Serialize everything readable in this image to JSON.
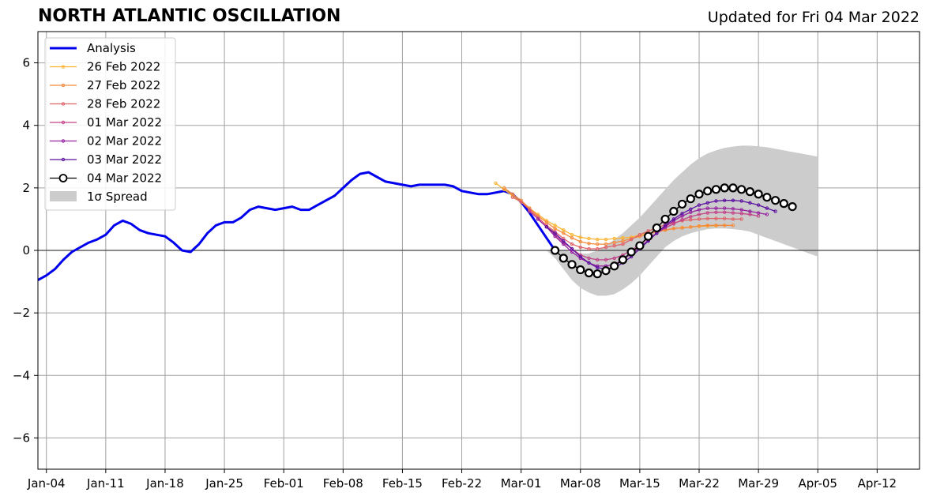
{
  "chart_data": {
    "type": "line",
    "title": "NORTH ATLANTIC OSCILLATION",
    "subtitle": "Updated for Fri 04 Mar 2022",
    "xlabel": "",
    "ylabel": "",
    "x_axis": "date",
    "xlim": [
      "2022-01-03",
      "2022-04-17"
    ],
    "ylim": [
      -7,
      7
    ],
    "x_ticks": [
      {
        "date": "2022-01-04",
        "label": "Jan-04"
      },
      {
        "date": "2022-01-11",
        "label": "Jan-11"
      },
      {
        "date": "2022-01-18",
        "label": "Jan-18"
      },
      {
        "date": "2022-01-25",
        "label": "Jan-25"
      },
      {
        "date": "2022-02-01",
        "label": "Feb-01"
      },
      {
        "date": "2022-02-08",
        "label": "Feb-08"
      },
      {
        "date": "2022-02-15",
        "label": "Feb-15"
      },
      {
        "date": "2022-02-22",
        "label": "Feb-22"
      },
      {
        "date": "2022-03-01",
        "label": "Mar-01"
      },
      {
        "date": "2022-03-08",
        "label": "Mar-08"
      },
      {
        "date": "2022-03-15",
        "label": "Mar-15"
      },
      {
        "date": "2022-03-22",
        "label": "Mar-22"
      },
      {
        "date": "2022-03-29",
        "label": "Mar-29"
      },
      {
        "date": "2022-04-05",
        "label": "Apr-05"
      },
      {
        "date": "2022-04-12",
        "label": "Apr-12"
      }
    ],
    "y_ticks": [
      {
        "value": -6,
        "label": "−6"
      },
      {
        "value": -4,
        "label": "−4"
      },
      {
        "value": -2,
        "label": "−2"
      },
      {
        "value": 0,
        "label": "0"
      },
      {
        "value": 2,
        "label": "2"
      },
      {
        "value": 4,
        "label": "4"
      },
      {
        "value": 6,
        "label": "6"
      }
    ],
    "grid": true,
    "zero_line": 0,
    "legend_position": "top-left",
    "analysis": {
      "name": "Analysis",
      "color": "#0000ee",
      "start_date": "2022-01-03",
      "values": [
        -0.95,
        -0.8,
        -0.6,
        -0.3,
        -0.05,
        0.1,
        0.25,
        0.35,
        0.5,
        0.8,
        0.95,
        0.85,
        0.65,
        0.55,
        0.5,
        0.45,
        0.25,
        0.0,
        -0.05,
        0.2,
        0.55,
        0.8,
        0.9,
        0.9,
        1.05,
        1.3,
        1.4,
        1.35,
        1.3,
        1.35,
        1.4,
        1.3,
        1.3,
        1.45,
        1.6,
        1.75,
        2.0,
        2.25,
        2.45,
        2.5,
        2.35,
        2.2,
        2.15,
        2.1,
        2.05,
        2.1,
        2.1,
        2.1,
        2.1,
        2.05,
        1.9,
        1.85,
        1.8,
        1.8,
        1.85,
        1.9,
        1.8,
        1.55,
        1.2,
        0.8,
        0.4,
        0.0
      ]
    },
    "forecasts": [
      {
        "name": "26 Feb 2022",
        "color": "#fbb32f",
        "start_date": "2022-02-26",
        "values": [
          2.15,
          1.95,
          1.75,
          1.55,
          1.35,
          1.15,
          0.95,
          0.8,
          0.65,
          0.5,
          0.42,
          0.38,
          0.35,
          0.35,
          0.38,
          0.4,
          0.42,
          0.5,
          0.55,
          0.6,
          0.65,
          0.7,
          0.73,
          0.75,
          0.77,
          0.78,
          0.79,
          0.8
        ]
      },
      {
        "name": "27 Feb 2022",
        "color": "#f58a3c",
        "start_date": "2022-02-27",
        "values": [
          2.0,
          1.8,
          1.6,
          1.35,
          1.1,
          0.9,
          0.7,
          0.55,
          0.4,
          0.28,
          0.22,
          0.2,
          0.2,
          0.25,
          0.3,
          0.38,
          0.45,
          0.52,
          0.6,
          0.65,
          0.7,
          0.72,
          0.75,
          0.78,
          0.8,
          0.8,
          0.8,
          0.8
        ]
      },
      {
        "name": "28 Feb 2022",
        "color": "#e0636a",
        "start_date": "2022-02-28",
        "values": [
          1.7,
          1.55,
          1.3,
          1.05,
          0.8,
          0.6,
          0.38,
          0.2,
          0.1,
          0.05,
          0.05,
          0.1,
          0.15,
          0.2,
          0.35,
          0.5,
          0.62,
          0.72,
          0.82,
          0.88,
          0.95,
          0.98,
          1.0,
          1.02,
          1.02,
          1.02,
          1.0,
          1.0
        ]
      },
      {
        "name": "01 Mar 2022",
        "color": "#c34287",
        "start_date": "2022-03-02",
        "values": [
          1.25,
          1.0,
          0.75,
          0.5,
          0.25,
          0.05,
          -0.15,
          -0.25,
          -0.3,
          -0.3,
          -0.25,
          -0.15,
          0.0,
          0.2,
          0.38,
          0.55,
          0.72,
          0.85,
          0.98,
          1.08,
          1.15,
          1.2,
          1.22,
          1.22,
          1.2,
          1.18,
          1.15,
          1.1
        ]
      },
      {
        "name": "02 Mar 2022",
        "color": "#9420a0",
        "start_date": "2022-03-03",
        "values": [
          1.0,
          0.75,
          0.45,
          0.2,
          -0.05,
          -0.25,
          -0.4,
          -0.5,
          -0.5,
          -0.45,
          -0.3,
          -0.1,
          0.1,
          0.32,
          0.55,
          0.75,
          0.95,
          1.1,
          1.22,
          1.3,
          1.35,
          1.35,
          1.35,
          1.33,
          1.3,
          1.25,
          1.2,
          1.15
        ]
      },
      {
        "name": "03 Mar 2022",
        "color": "#5c10a0",
        "start_date": "2022-03-04",
        "values": [
          0.75,
          0.55,
          0.3,
          0.05,
          -0.2,
          -0.4,
          -0.55,
          -0.6,
          -0.55,
          -0.4,
          -0.2,
          0.05,
          0.3,
          0.55,
          0.8,
          1.0,
          1.18,
          1.32,
          1.45,
          1.52,
          1.58,
          1.6,
          1.6,
          1.58,
          1.52,
          1.45,
          1.35,
          1.25
        ]
      },
      {
        "name": "04 Mar 2022",
        "color": "#000000",
        "start_date": "2022-03-05",
        "values": [
          0.0,
          -0.25,
          -0.45,
          -0.62,
          -0.72,
          -0.75,
          -0.65,
          -0.5,
          -0.3,
          -0.05,
          0.15,
          0.45,
          0.72,
          1.0,
          1.25,
          1.48,
          1.65,
          1.8,
          1.9,
          1.95,
          2.0,
          2.0,
          1.95,
          1.88,
          1.8,
          1.7,
          1.6,
          1.5,
          1.4
        ]
      }
    ],
    "spread": {
      "name": "1σ Spread",
      "color": "#cccccc",
      "start_date": "2022-03-04",
      "upper": [
        0.0,
        0.0,
        0.0,
        -0.05,
        -0.1,
        -0.1,
        0.0,
        0.15,
        0.35,
        0.55,
        0.8,
        1.05,
        1.35,
        1.65,
        1.95,
        2.25,
        2.5,
        2.75,
        2.95,
        3.1,
        3.2,
        3.28,
        3.32,
        3.35,
        3.35,
        3.33,
        3.3,
        3.25,
        3.2,
        3.15,
        3.1,
        3.05,
        3.0
      ],
      "lower": [
        0.0,
        -0.25,
        -0.6,
        -0.95,
        -1.2,
        -1.35,
        -1.45,
        -1.45,
        -1.4,
        -1.25,
        -1.05,
        -0.8,
        -0.5,
        -0.2,
        0.1,
        0.3,
        0.45,
        0.55,
        0.62,
        0.68,
        0.7,
        0.7,
        0.68,
        0.65,
        0.6,
        0.5,
        0.4,
        0.3,
        0.2,
        0.1,
        0.0,
        -0.1,
        -0.2
      ]
    }
  }
}
